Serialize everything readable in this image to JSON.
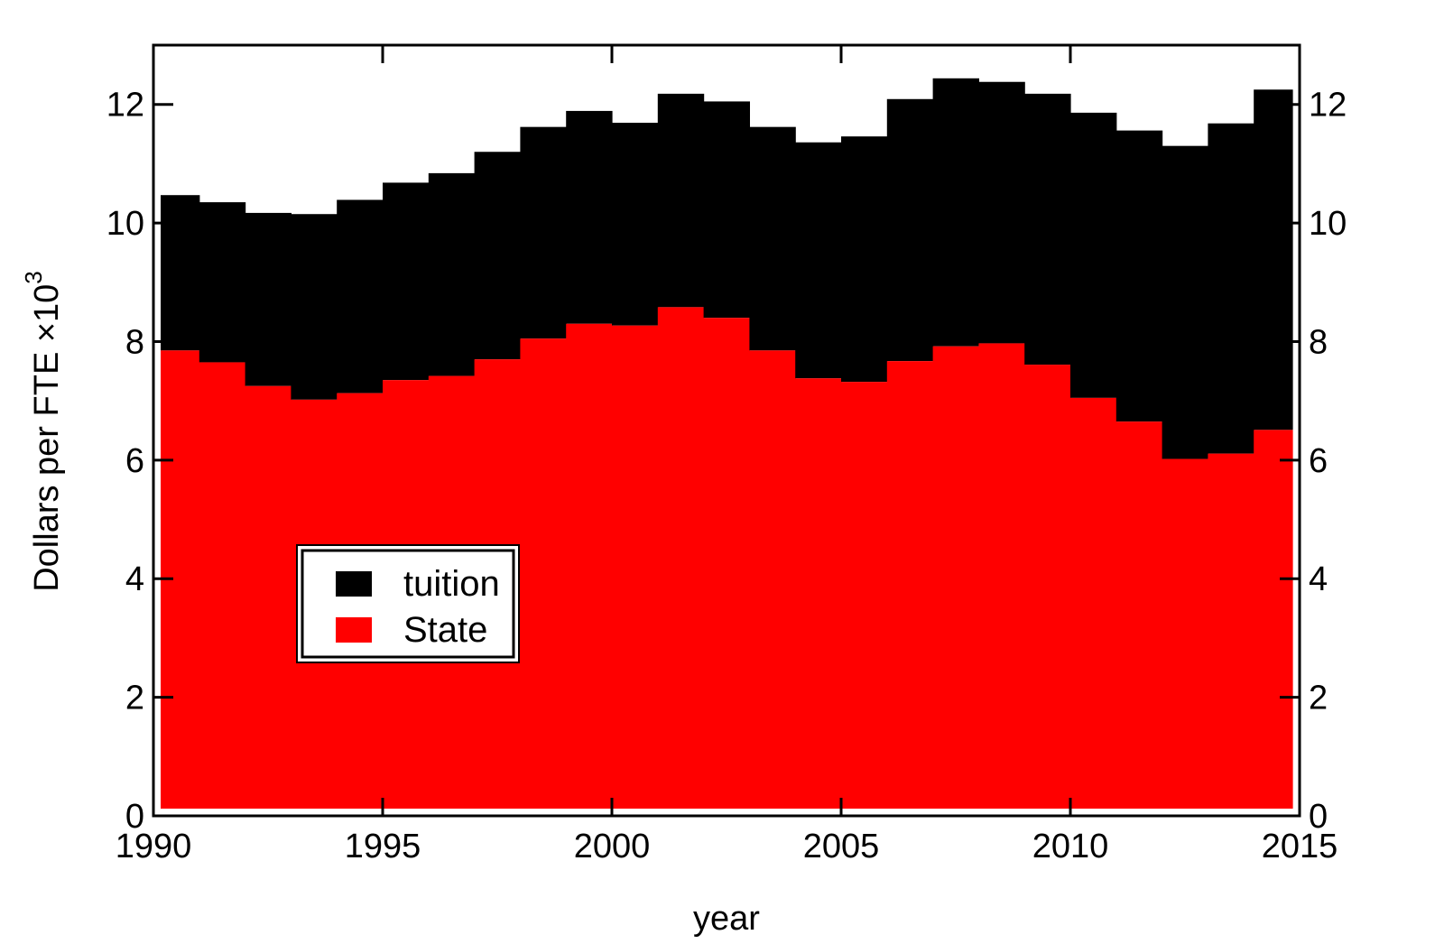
{
  "chart_data": {
    "type": "area",
    "xlabel": "year",
    "ylabel": "Dollars per FTE ×10",
    "ylabel_exponent": "3",
    "xlim": [
      1990,
      2015
    ],
    "ylim": [
      0,
      13
    ],
    "x_ticks": [
      1990,
      1995,
      2000,
      2005,
      2010,
      2015
    ],
    "x_tick_labels": [
      "1990",
      "1995",
      "2000",
      "2005",
      "2010",
      "2015"
    ],
    "y_ticks": [
      0,
      2,
      4,
      6,
      8,
      10,
      12
    ],
    "y_tick_labels": [
      "0",
      "2",
      "4",
      "6",
      "8",
      "10",
      "12"
    ],
    "step": true,
    "stacked": true,
    "x": [
      1990,
      1991,
      1992,
      1993,
      1994,
      1995,
      1996,
      1997,
      1998,
      1999,
      2000,
      2001,
      2002,
      2003,
      2004,
      2005,
      2006,
      2007,
      2008,
      2009,
      2010,
      2011,
      2012,
      2013,
      2014
    ],
    "series": [
      {
        "name": "State",
        "color": "#ff0000",
        "values": [
          7.85,
          7.65,
          7.25,
          7.02,
          7.13,
          7.35,
          7.42,
          7.7,
          8.05,
          8.3,
          8.27,
          8.58,
          8.4,
          7.85,
          7.38,
          7.32,
          7.67,
          7.92,
          7.97,
          7.61,
          7.05,
          6.65,
          6.02,
          6.11,
          6.51
        ]
      },
      {
        "name": "tuition",
        "color": "#000000",
        "totals": [
          10.47,
          10.35,
          10.17,
          10.15,
          10.39,
          10.68,
          10.84,
          11.2,
          11.62,
          11.89,
          11.69,
          12.18,
          12.05,
          11.62,
          11.36,
          11.46,
          12.09,
          12.44,
          12.38,
          12.18,
          11.86,
          11.56,
          11.3,
          11.68,
          12.25
        ]
      }
    ],
    "legend": {
      "placement": "center-left",
      "entries": [
        {
          "label": "tuition",
          "color": "#000000"
        },
        {
          "label": "State",
          "color": "#ff0000"
        }
      ]
    },
    "grid": false
  }
}
